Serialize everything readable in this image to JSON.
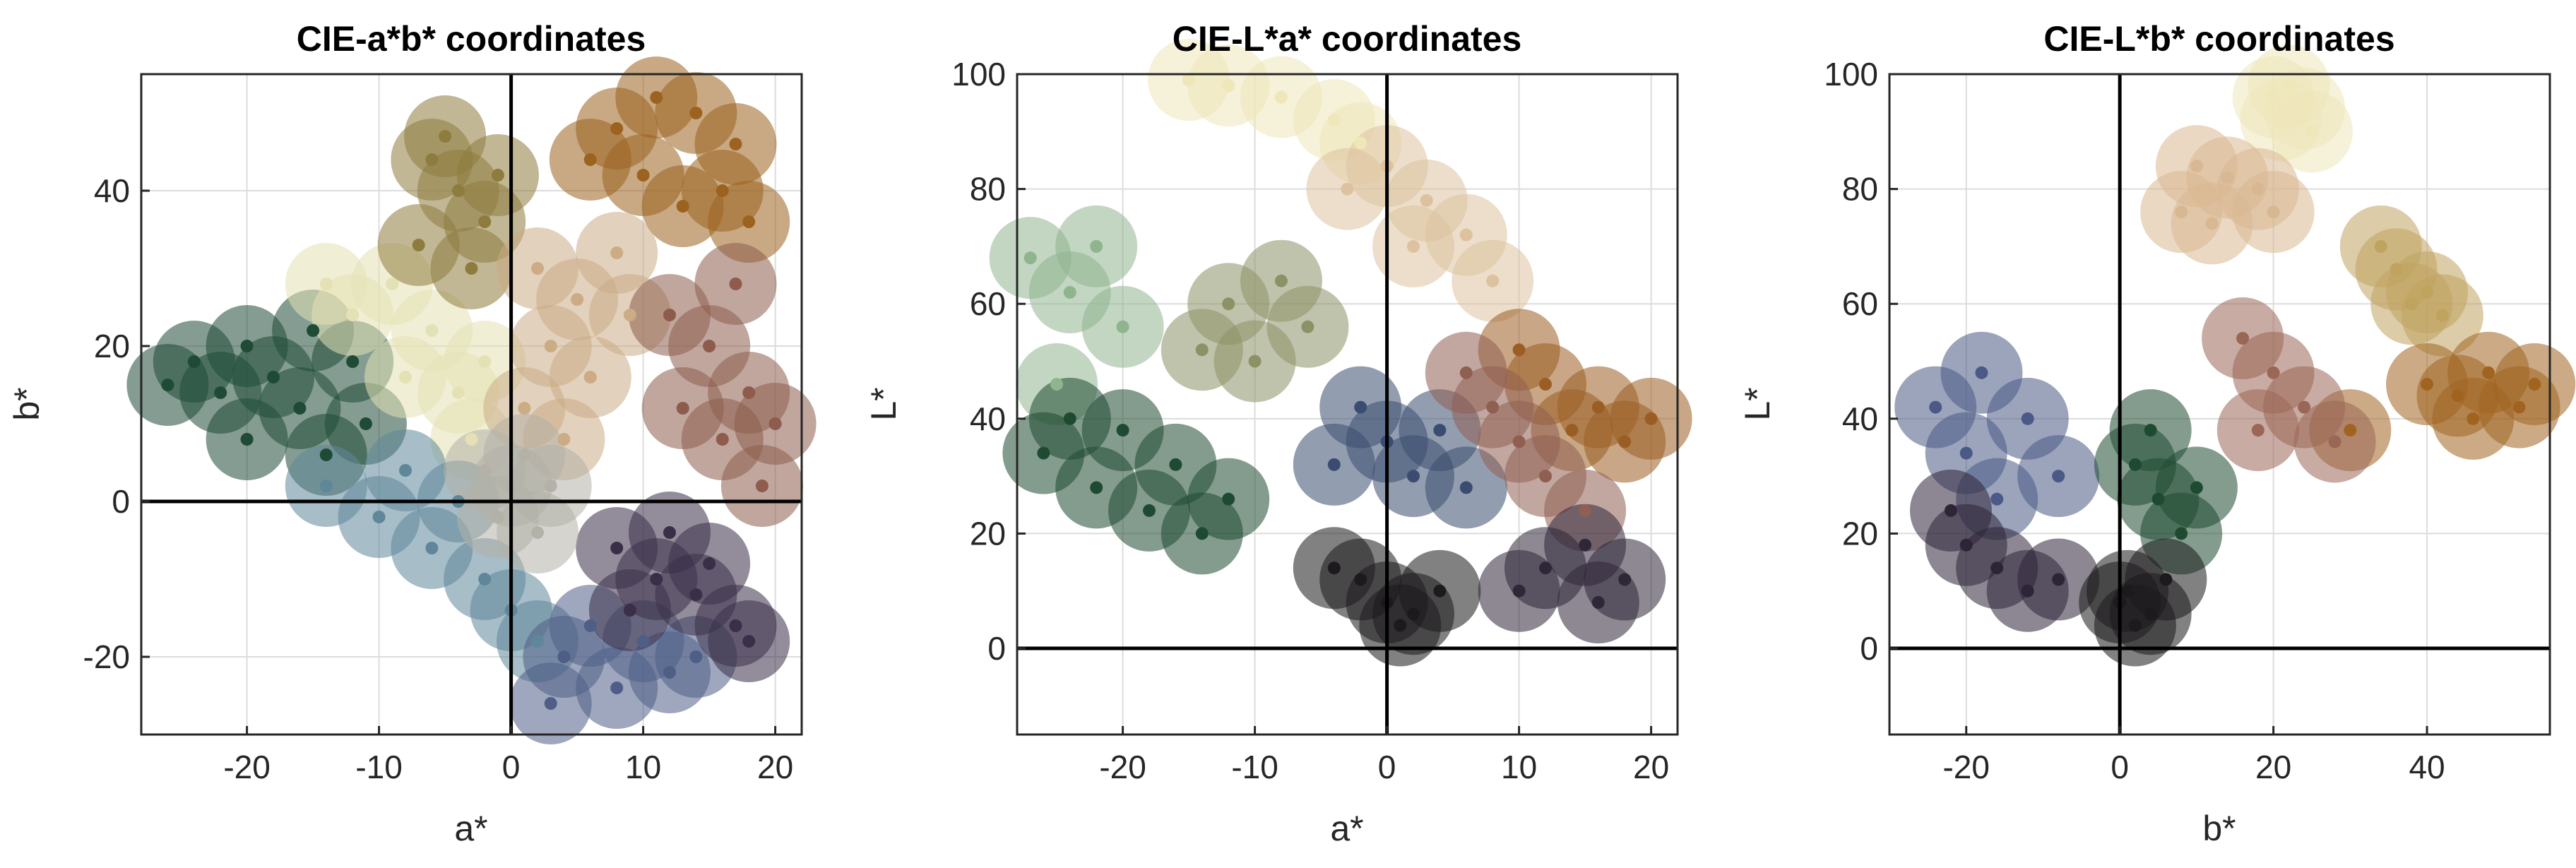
{
  "chart_data": [
    {
      "type": "scatter",
      "title": "CIE-a*b* coordinates",
      "xlabel": "a*",
      "ylabel": "b*",
      "xlim": [
        -28,
        22
      ],
      "ylim": [
        -30,
        55
      ],
      "xticks": [
        -20,
        -10,
        0,
        10,
        20
      ],
      "yticks": [
        -20,
        0,
        20,
        40
      ],
      "grid": true,
      "zero_lines": true,
      "clusters": [
        {
          "name": "green",
          "color": "#1f4a36",
          "points": [
            [
              -26,
              15
            ],
            [
              -24,
              18
            ],
            [
              -22,
              14
            ],
            [
              -20,
              20
            ],
            [
              -18,
              16
            ],
            [
              -16,
              12
            ],
            [
              -15,
              22
            ],
            [
              -12,
              18
            ],
            [
              -20,
              8
            ],
            [
              -14,
              6
            ],
            [
              -11,
              10
            ]
          ]
        },
        {
          "name": "pale-yellow",
          "color": "#e4e1b4",
          "points": [
            [
              -12,
              24
            ],
            [
              -9,
              28
            ],
            [
              -6,
              22
            ],
            [
              -14,
              28
            ],
            [
              -4,
              14
            ],
            [
              -2,
              18
            ],
            [
              -8,
              16
            ],
            [
              -3,
              8
            ]
          ]
        },
        {
          "name": "olive",
          "color": "#8e7c3e",
          "points": [
            [
              -6,
              44
            ],
            [
              -4,
              40
            ],
            [
              -2,
              36
            ],
            [
              -7,
              33
            ],
            [
              -3,
              30
            ],
            [
              -1,
              42
            ],
            [
              -5,
              47
            ]
          ]
        },
        {
          "name": "orange-brown",
          "color": "#9b631f",
          "points": [
            [
              8,
              48
            ],
            [
              11,
              52
            ],
            [
              14,
              50
            ],
            [
              17,
              46
            ],
            [
              10,
              42
            ],
            [
              13,
              38
            ],
            [
              16,
              40
            ],
            [
              6,
              44
            ],
            [
              18,
              36
            ]
          ]
        },
        {
          "name": "tan",
          "color": "#cbac85",
          "points": [
            [
              2,
              30
            ],
            [
              5,
              26
            ],
            [
              8,
              32
            ],
            [
              3,
              20
            ],
            [
              6,
              16
            ],
            [
              9,
              24
            ],
            [
              1,
              12
            ],
            [
              4,
              8
            ]
          ]
        },
        {
          "name": "rose-brown",
          "color": "#8d5c4c",
          "points": [
            [
              12,
              24
            ],
            [
              15,
              20
            ],
            [
              18,
              14
            ],
            [
              16,
              8
            ],
            [
              13,
              12
            ],
            [
              19,
              2
            ],
            [
              20,
              10
            ],
            [
              17,
              28
            ]
          ]
        },
        {
          "name": "teal-blue",
          "color": "#5f8799",
          "points": [
            [
              -14,
              2
            ],
            [
              -10,
              -2
            ],
            [
              -6,
              -6
            ],
            [
              -2,
              -10
            ],
            [
              -8,
              4
            ],
            [
              -4,
              0
            ],
            [
              0,
              -14
            ],
            [
              2,
              -18
            ]
          ]
        },
        {
          "name": "slate-blue",
          "color": "#4f5e86",
          "points": [
            [
              4,
              -20
            ],
            [
              8,
              -24
            ],
            [
              12,
              -22
            ],
            [
              6,
              -16
            ],
            [
              10,
              -18
            ],
            [
              3,
              -26
            ],
            [
              14,
              -20
            ]
          ]
        },
        {
          "name": "dark-purple",
          "color": "#3a2f48",
          "points": [
            [
              8,
              -6
            ],
            [
              11,
              -10
            ],
            [
              14,
              -12
            ],
            [
              17,
              -16
            ],
            [
              12,
              -4
            ],
            [
              15,
              -8
            ],
            [
              18,
              -18
            ],
            [
              9,
              -14
            ]
          ]
        },
        {
          "name": "gray",
          "color": "#b3b1a8",
          "points": [
            [
              -2,
              4
            ],
            [
              0,
              2
            ],
            [
              1,
              6
            ],
            [
              -1,
              -2
            ],
            [
              2,
              -4
            ],
            [
              3,
              2
            ]
          ]
        }
      ]
    },
    {
      "type": "scatter",
      "title": "CIE-L*a* coordinates",
      "xlabel": "a*",
      "ylabel": "L*",
      "xlim": [
        -28,
        22
      ],
      "ylim": [
        -15,
        100
      ],
      "xticks": [
        -20,
        -10,
        0,
        10,
        20
      ],
      "yticks": [
        0,
        20,
        40,
        60,
        80,
        100
      ],
      "grid": true,
      "zero_lines": true,
      "clusters": [
        {
          "name": "pale-yellow",
          "color": "#efe6b9",
          "points": [
            [
              -12,
              98
            ],
            [
              -8,
              96
            ],
            [
              -4,
              92
            ],
            [
              -2,
              88
            ],
            [
              -15,
              99
            ]
          ]
        },
        {
          "name": "light-tan",
          "color": "#dcc29f",
          "points": [
            [
              -3,
              80
            ],
            [
              0,
              84
            ],
            [
              3,
              78
            ],
            [
              6,
              72
            ],
            [
              8,
              64
            ],
            [
              2,
              70
            ]
          ]
        },
        {
          "name": "pale-green",
          "color": "#8fb58f",
          "points": [
            [
              -22,
              70
            ],
            [
              -24,
              62
            ],
            [
              -20,
              56
            ],
            [
              -25,
              46
            ],
            [
              -27,
              68
            ]
          ]
        },
        {
          "name": "olive",
          "color": "#8c9266",
          "points": [
            [
              -12,
              60
            ],
            [
              -8,
              64
            ],
            [
              -6,
              56
            ],
            [
              -14,
              52
            ],
            [
              -10,
              50
            ]
          ]
        },
        {
          "name": "green",
          "color": "#1f4a32",
          "points": [
            [
              -26,
              34
            ],
            [
              -22,
              28
            ],
            [
              -18,
              24
            ],
            [
              -14,
              20
            ],
            [
              -20,
              38
            ],
            [
              -16,
              32
            ],
            [
              -12,
              26
            ],
            [
              -24,
              40
            ]
          ]
        },
        {
          "name": "blue",
          "color": "#3a4c70",
          "points": [
            [
              -2,
              42
            ],
            [
              0,
              36
            ],
            [
              2,
              30
            ],
            [
              4,
              38
            ],
            [
              -4,
              32
            ],
            [
              6,
              28
            ]
          ]
        },
        {
          "name": "orange-brown",
          "color": "#9a5d23",
          "points": [
            [
              14,
              38
            ],
            [
              16,
              42
            ],
            [
              18,
              36
            ],
            [
              20,
              40
            ],
            [
              12,
              46
            ],
            [
              10,
              52
            ]
          ]
        },
        {
          "name": "rose-brown",
          "color": "#8f5f52",
          "points": [
            [
              8,
              42
            ],
            [
              10,
              36
            ],
            [
              12,
              30
            ],
            [
              15,
              24
            ],
            [
              6,
              48
            ]
          ]
        },
        {
          "name": "dark",
          "color": "#1c1a1c",
          "points": [
            [
              -2,
              12
            ],
            [
              0,
              8
            ],
            [
              2,
              6
            ],
            [
              1,
              4
            ],
            [
              4,
              10
            ],
            [
              -4,
              14
            ]
          ]
        },
        {
          "name": "dark-purple",
          "color": "#2f2738",
          "points": [
            [
              12,
              14
            ],
            [
              15,
              18
            ],
            [
              18,
              12
            ],
            [
              10,
              10
            ],
            [
              16,
              8
            ]
          ]
        }
      ]
    },
    {
      "type": "scatter",
      "title": "CIE-L*b* coordinates",
      "xlabel": "b*",
      "ylabel": "L*",
      "xlim": [
        -30,
        56
      ],
      "ylim": [
        -15,
        100
      ],
      "xticks": [
        -20,
        0,
        20,
        40
      ],
      "yticks": [
        0,
        20,
        40,
        60,
        80,
        100
      ],
      "grid": true,
      "zero_lines": true,
      "clusters": [
        {
          "name": "pale-yellow",
          "color": "#efe6b9",
          "points": [
            [
              20,
              96
            ],
            [
              22,
              98
            ],
            [
              24,
              94
            ],
            [
              25,
              90
            ],
            [
              21,
              92
            ]
          ]
        },
        {
          "name": "light-tan",
          "color": "#d8b892",
          "points": [
            [
              10,
              84
            ],
            [
              14,
              82
            ],
            [
              18,
              80
            ],
            [
              8,
              76
            ],
            [
              12,
              74
            ],
            [
              20,
              76
            ]
          ]
        },
        {
          "name": "yellow-olive",
          "color": "#bfa35f",
          "points": [
            [
              36,
              66
            ],
            [
              40,
              62
            ],
            [
              42,
              58
            ],
            [
              34,
              70
            ],
            [
              38,
              60
            ]
          ]
        },
        {
          "name": "orange-brown",
          "color": "#a06420",
          "points": [
            [
              40,
              46
            ],
            [
              44,
              44
            ],
            [
              48,
              48
            ],
            [
              52,
              42
            ],
            [
              54,
              46
            ],
            [
              46,
              40
            ],
            [
              30,
              38
            ]
          ]
        },
        {
          "name": "rose-brown",
          "color": "#9a6656",
          "points": [
            [
              16,
              54
            ],
            [
              20,
              48
            ],
            [
              24,
              42
            ],
            [
              28,
              36
            ],
            [
              18,
              38
            ]
          ]
        },
        {
          "name": "blue",
          "color": "#4a5985",
          "points": [
            [
              -24,
              42
            ],
            [
              -20,
              34
            ],
            [
              -16,
              26
            ],
            [
              -12,
              40
            ],
            [
              -18,
              48
            ],
            [
              -8,
              30
            ]
          ]
        },
        {
          "name": "dark-purple",
          "color": "#2e2438",
          "points": [
            [
              -20,
              18
            ],
            [
              -16,
              14
            ],
            [
              -12,
              10
            ],
            [
              -8,
              12
            ],
            [
              -22,
              24
            ]
          ]
        },
        {
          "name": "green",
          "color": "#1f4a32",
          "points": [
            [
              2,
              32
            ],
            [
              5,
              26
            ],
            [
              8,
              20
            ],
            [
              10,
              28
            ],
            [
              4,
              38
            ]
          ]
        },
        {
          "name": "dark",
          "color": "#1c1a1c",
          "points": [
            [
              0,
              8
            ],
            [
              2,
              4
            ],
            [
              4,
              6
            ],
            [
              1,
              10
            ],
            [
              6,
              12
            ]
          ]
        }
      ]
    }
  ]
}
